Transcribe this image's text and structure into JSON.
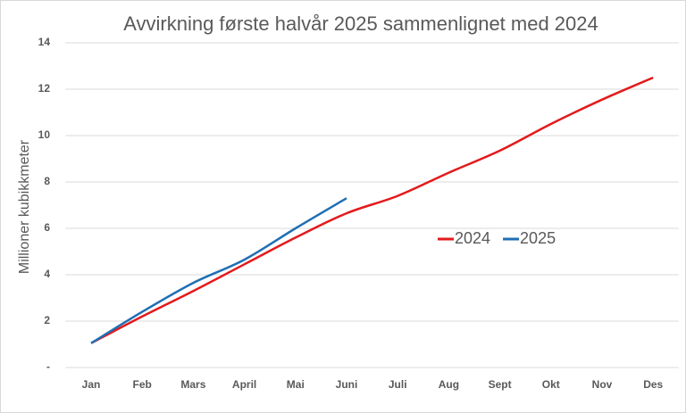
{
  "chart_data": {
    "type": "line",
    "title": "Avvirkning første halvår 2025 sammenlignet med 2024",
    "y_label": "Millioner kubikkmeter",
    "categories": [
      "Jan",
      "Feb",
      "Mars",
      "April",
      "Mai",
      "Juni",
      "Juli",
      "Aug",
      "Sept",
      "Okt",
      "Nov",
      "Des"
    ],
    "series": [
      {
        "name": "2024",
        "color": "#e31a1c",
        "values": [
          1.05,
          2.2,
          3.3,
          4.45,
          5.6,
          6.65,
          7.4,
          8.4,
          9.35,
          10.5,
          11.55,
          12.5
        ]
      },
      {
        "name": "2025",
        "color": "#1f6fb4",
        "values": [
          1.05,
          2.4,
          3.65,
          4.65,
          6.0,
          7.3,
          null,
          null,
          null,
          null,
          null,
          null
        ]
      }
    ],
    "ylim": [
      0,
      14
    ],
    "yticks": [
      {
        "value": 0,
        "label": "-"
      },
      2,
      4,
      6,
      8,
      10,
      12,
      14
    ],
    "grid": true,
    "legend": "center"
  }
}
